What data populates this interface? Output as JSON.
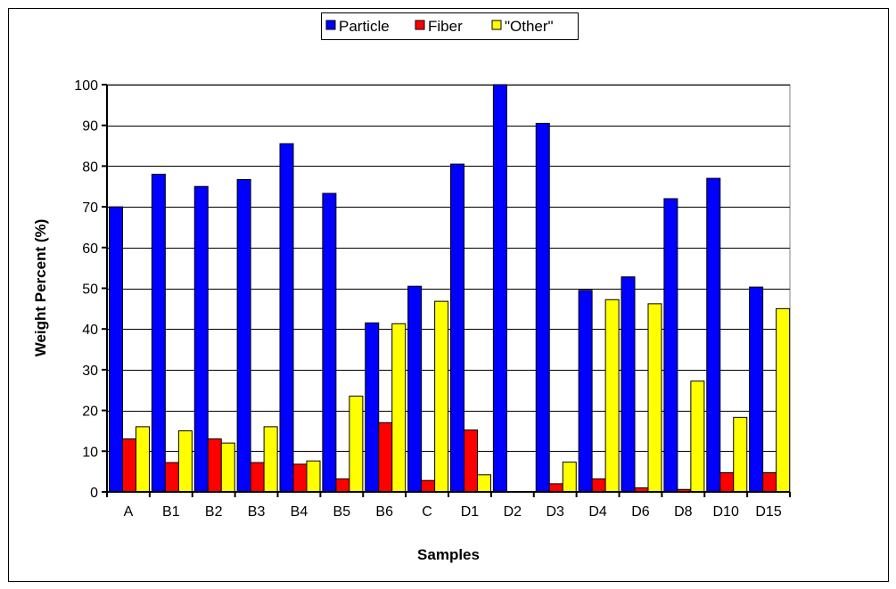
{
  "chart_data": {
    "type": "bar",
    "xlabel": "Samples",
    "ylabel": "Weight Percent (%)",
    "ylim": [
      0,
      100
    ],
    "yticks": [
      0,
      10,
      20,
      30,
      40,
      50,
      60,
      70,
      80,
      90,
      100
    ],
    "grid": true,
    "legend_position": "top-center",
    "categories": [
      "A",
      "B1",
      "B2",
      "B3",
      "B4",
      "B5",
      "B6",
      "C",
      "D1",
      "D2",
      "D3",
      "D4",
      "D6",
      "D8",
      "D10",
      "D15"
    ],
    "series": [
      {
        "name": "Particle",
        "color": "#0000ff",
        "values": [
          70,
          78,
          75,
          76.7,
          85.5,
          73.3,
          41.5,
          50.5,
          80.5,
          100,
          90.5,
          49.5,
          52.8,
          72,
          77,
          50.3
        ]
      },
      {
        "name": "Fiber",
        "color": "#ff0000",
        "values": [
          13,
          7.2,
          13,
          7.2,
          6.8,
          3.2,
          17,
          2.8,
          15.2,
          0,
          2,
          3.2,
          1,
          0.6,
          4.7,
          4.7
        ]
      },
      {
        "name": "\"Other\"",
        "color": "#ffff00",
        "values": [
          16,
          15,
          12,
          16,
          7.6,
          23.5,
          41.3,
          46.8,
          4.2,
          0,
          7.3,
          47.2,
          46.2,
          27.2,
          18.3,
          45
        ]
      }
    ]
  }
}
